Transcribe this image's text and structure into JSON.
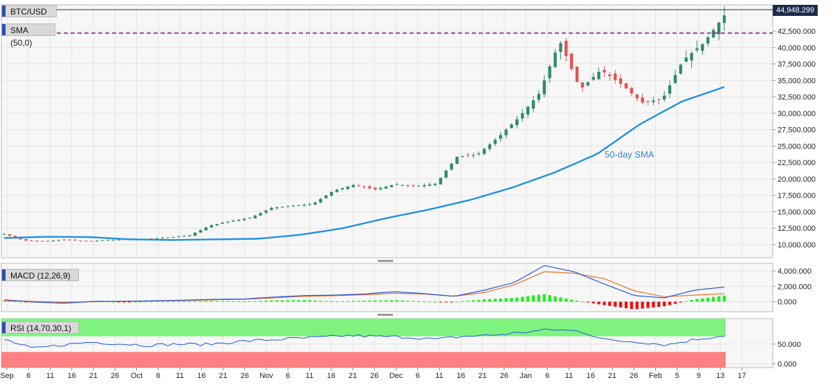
{
  "chart_data": {
    "type": "candlestick",
    "title": "BTC/USD",
    "last_price": "44,948.299",
    "sma_legend": "SMA (50,0)",
    "resistance_level": 42200,
    "annotation": "50-day SMA",
    "colors": {
      "up": "#2e8b68",
      "down": "#e15353",
      "sma": "#1e90e6",
      "resistance": "#8b0a8b",
      "macd": "#2255dd",
      "signal": "#f07020",
      "rsi": "#2255dd",
      "hist_pos": "#22ee22",
      "hist_neg": "#ee1111",
      "rsi_upper_zone": "#7ef47e",
      "rsi_lower_zone": "#ff8080"
    },
    "price_axis": {
      "ylim": [
        8000,
        46500
      ],
      "ticks": [
        "10,000.000",
        "12,500.000",
        "15,000.000",
        "17,500.000",
        "20,000.000",
        "22,500.000",
        "25,000.000",
        "27,500.000",
        "30,000.000",
        "32,500.000",
        "35,000.000",
        "37,500.000",
        "40,000.000",
        "42,500.000"
      ]
    },
    "x_tick_labels": [
      "Sep",
      "6",
      "11",
      "16",
      "21",
      "26",
      "Oct",
      "6",
      "11",
      "16",
      "21",
      "26",
      "Nov",
      "6",
      "11",
      "16",
      "21",
      "26",
      "Dec",
      "6",
      "11",
      "16",
      "21",
      "26",
      "Jan",
      "6",
      "11",
      "16",
      "21",
      "26",
      "Feb",
      "5",
      "9",
      "13",
      "17"
    ],
    "close_waypoints": [
      11600,
      10600,
      10500,
      10800,
      10500,
      10700,
      10800,
      10900,
      11100,
      11400,
      12900,
      13600,
      14100,
      15600,
      15900,
      16200,
      18200,
      19100,
      18400,
      19200,
      18900,
      19300,
      23400,
      23700,
      26300,
      29300,
      33000,
      41000,
      33600,
      36600,
      34400,
      31600,
      32200,
      38100,
      40700,
      44900
    ],
    "sma_waypoints": [
      11000,
      11200,
      11150,
      10800,
      10700,
      10800,
      10900,
      11500,
      12500,
      14000,
      15300,
      16800,
      18700,
      21000,
      23800,
      28300,
      31800,
      34000
    ],
    "macd_panel": {
      "legend": "MACD (12,26,9)",
      "ticks": [
        "4,000.000",
        "2,000.000",
        "0.000"
      ],
      "ylim": [
        -1300,
        5000
      ],
      "macd_waypoints": [
        260,
        -50,
        -200,
        50,
        40,
        120,
        200,
        310,
        350,
        600,
        800,
        850,
        1000,
        1300,
        1050,
        700,
        1500,
        2500,
        4700,
        3900,
        2300,
        800,
        500,
        1500,
        1900
      ],
      "signal_waypoints": [
        120,
        40,
        -80,
        0,
        60,
        100,
        150,
        250,
        320,
        500,
        700,
        780,
        900,
        1100,
        1000,
        700,
        1200,
        2200,
        3900,
        3700,
        3000,
        1400,
        650,
        850,
        1050
      ],
      "hist_waypoints": [
        100,
        -60,
        -110,
        50,
        -20,
        50,
        80,
        120,
        30,
        180,
        220,
        30,
        140,
        200,
        30,
        -30,
        300,
        500,
        1000,
        200,
        -450,
        -1000,
        -600,
        300,
        800
      ]
    },
    "rsi_panel": {
      "legend": "RSI (14,70,30,1)",
      "ticks": [
        "50.000",
        "0.000"
      ],
      "ylim": [
        -10,
        115
      ],
      "upper": 70,
      "lower": 30,
      "rsi_waypoints": [
        62,
        38,
        48,
        55,
        51,
        47,
        50,
        49,
        56,
        60,
        64,
        67,
        72,
        69,
        68,
        62,
        70,
        73,
        80,
        87,
        83,
        59,
        56,
        48,
        62,
        72
      ]
    }
  }
}
